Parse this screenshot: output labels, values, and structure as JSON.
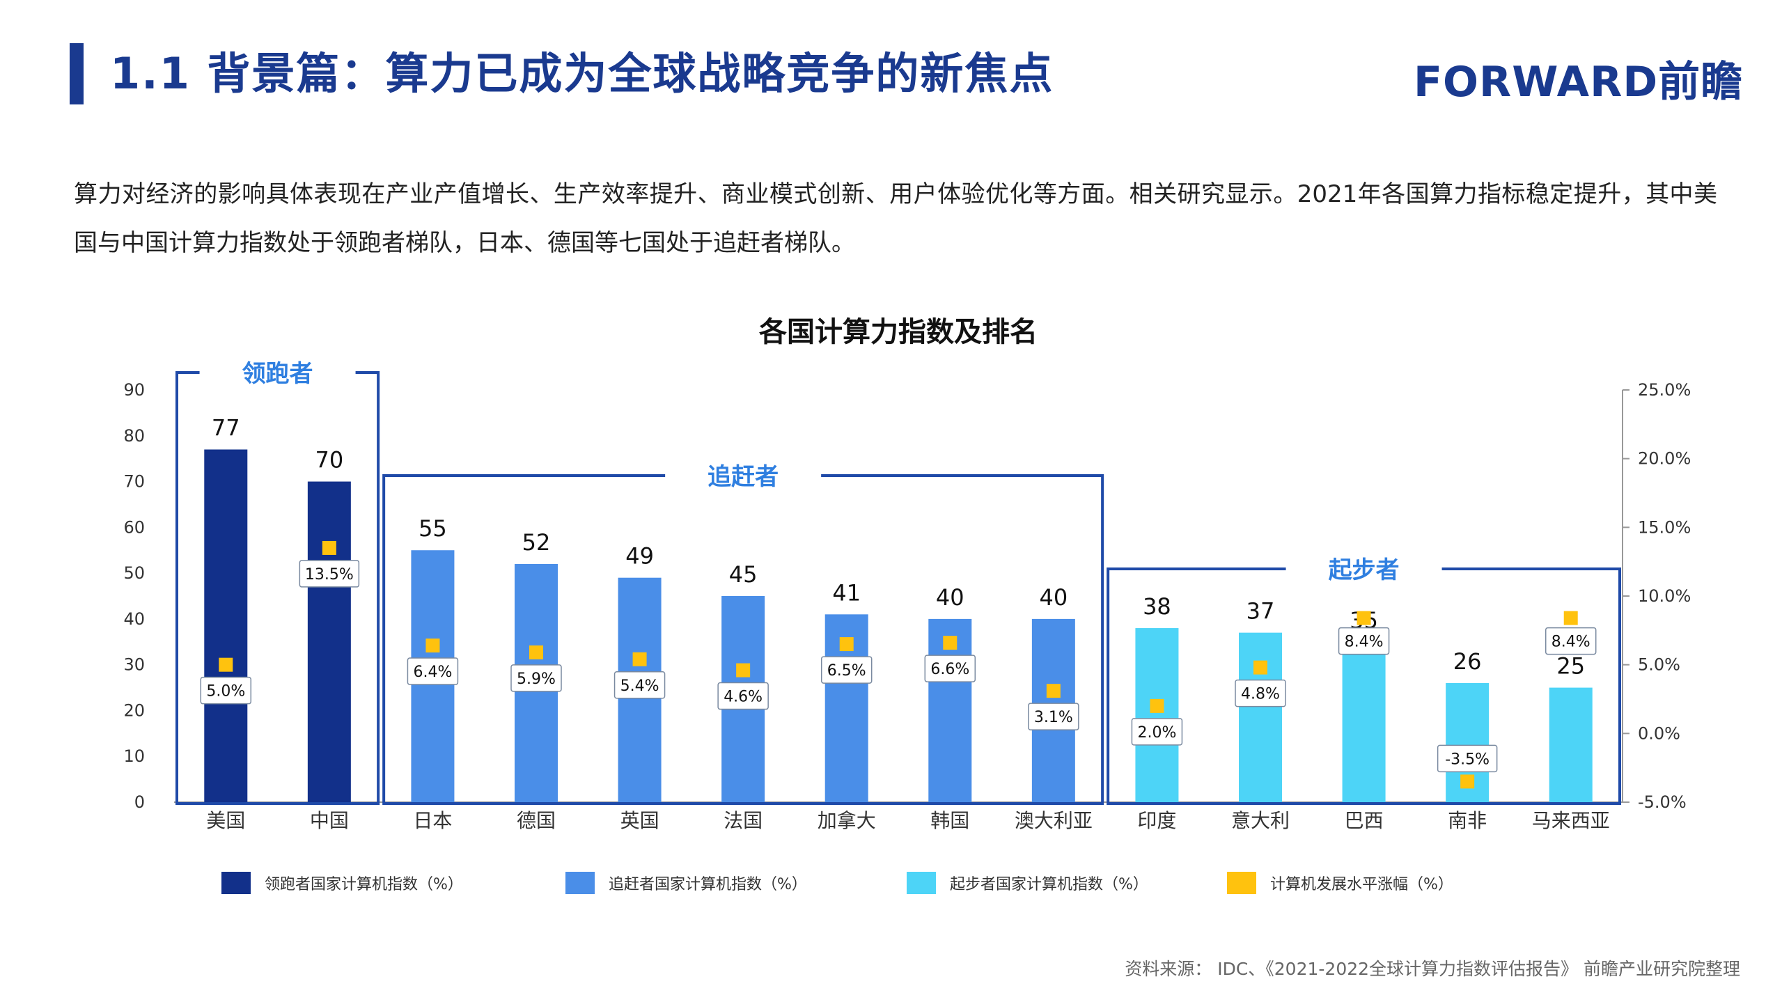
{
  "header": {
    "title": "1.1 背景篇：算力已成为全球战略竞争的新焦点",
    "logo_text": "FORWARD前瞻"
  },
  "intro": {
    "text": "算力对经济的影响具体表现在产业产值增长、生产效率提升、商业模式创新、用户体验优化等方面。相关研究显示。2021年各国算力指标稳定提升，其中美国与中国计算力指数处于领跑者梯队，日本、德国等七国处于追赶者梯队。"
  },
  "colors": {
    "accent": "#1a3a8f",
    "leader": "#12308a",
    "chaser": "#4a8ee8",
    "starter": "#4dd4f7",
    "growth": "#ffc20e",
    "group_box": "#1f4aa8",
    "group_label": "#2f7fe0"
  },
  "chart_data": {
    "type": "bar",
    "title": "各国计算力指数及排名",
    "categories": [
      "美国",
      "中国",
      "日本",
      "德国",
      "英国",
      "法国",
      "加拿大",
      "韩国",
      "澳大利亚",
      "印度",
      "意大利",
      "巴西",
      "南非",
      "马来西亚"
    ],
    "series": [
      {
        "name": "领跑者国家计算机指数（%）",
        "kind": "bar",
        "axis": "left",
        "values": [
          77,
          70,
          null,
          null,
          null,
          null,
          null,
          null,
          null,
          null,
          null,
          null,
          null,
          null
        ]
      },
      {
        "name": "追赶者国家计算机指数（%）",
        "kind": "bar",
        "axis": "left",
        "values": [
          null,
          null,
          55,
          52,
          49,
          45,
          41,
          40,
          40,
          null,
          null,
          null,
          null,
          null
        ]
      },
      {
        "name": "起步者国家计算机指数（%）",
        "kind": "bar",
        "axis": "left",
        "values": [
          null,
          null,
          null,
          null,
          null,
          null,
          null,
          null,
          null,
          38,
          37,
          35,
          26,
          25
        ]
      },
      {
        "name": "计算机发展水平涨幅（%）",
        "kind": "point",
        "axis": "right",
        "values": [
          5.0,
          13.5,
          6.4,
          5.9,
          5.4,
          4.6,
          6.5,
          6.6,
          3.1,
          2.0,
          4.8,
          8.4,
          -3.5,
          8.4
        ]
      }
    ],
    "bar_labels": [
      "77",
      "70",
      "55",
      "52",
      "49",
      "45",
      "41",
      "40",
      "40",
      "38",
      "37",
      "35",
      "26",
      "25"
    ],
    "growth_labels": [
      "5.0%",
      "13.5%",
      "6.4%",
      "5.9%",
      "5.4%",
      "4.6%",
      "6.5%",
      "6.6%",
      "3.1%",
      "2.0%",
      "4.8%",
      "8.4%",
      "-3.5%",
      "8.4%"
    ],
    "groups": [
      {
        "label": "领跑者",
        "from": 0,
        "to": 1
      },
      {
        "label": "追赶者",
        "from": 2,
        "to": 8
      },
      {
        "label": "起步者",
        "from": 9,
        "to": 13
      }
    ],
    "y_left": {
      "min": 0,
      "max": 90,
      "ticks": [
        "0",
        "10",
        "20",
        "30",
        "40",
        "50",
        "60",
        "70",
        "80",
        "90"
      ]
    },
    "y_right": {
      "min": -5,
      "max": 25,
      "ticks": [
        "-5.0%",
        "0.0%",
        "5.0%",
        "10.0%",
        "15.0%",
        "20.0%",
        "25.0%"
      ]
    },
    "legend": {
      "placement": "bottom"
    }
  },
  "footer": {
    "source": "资料来源： IDC、《2021-2022全球计算力指数评估报告》 前瞻产业研究院整理"
  }
}
